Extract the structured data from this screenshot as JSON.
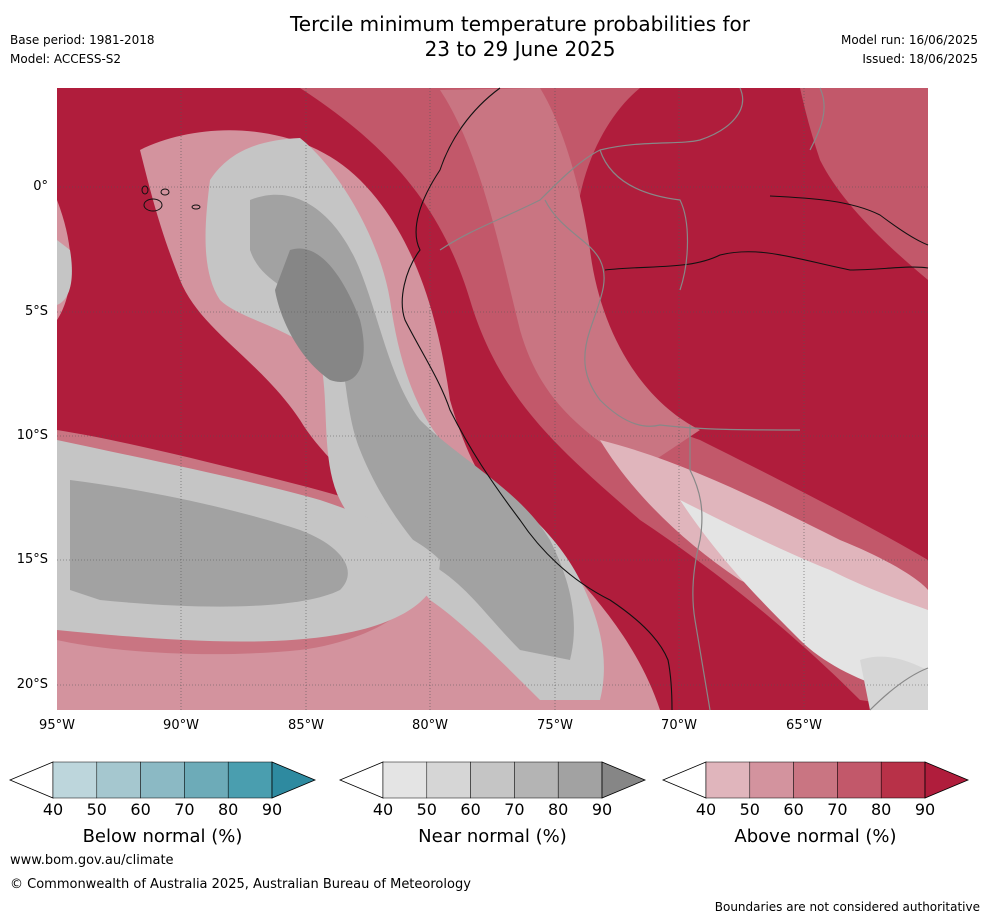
{
  "title_line1": "Tercile minimum temperature probabilities for",
  "title_line2": "23 to 29 June 2025",
  "base_period": "Base period: 1981-2018",
  "model": "Model: ACCESS-S2",
  "model_run": "Model run: 16/06/2025",
  "issued": "Issued: 18/06/2025",
  "lat_labels": [
    "0°",
    "5°S",
    "10°S",
    "15°S",
    "20°S"
  ],
  "lon_labels": [
    "95°W",
    "90°W",
    "85°W",
    "80°W",
    "75°W",
    "70°W",
    "65°W"
  ],
  "colorbars": [
    {
      "title": "Below normal (%)",
      "ticks": [
        "40",
        "50",
        "60",
        "70",
        "80",
        "90"
      ],
      "colors": [
        "#ffffff",
        "#bdd6dc",
        "#a5c7cf",
        "#8bb9c4",
        "#6dabb8",
        "#4a9eaf",
        "#2e8aa0"
      ]
    },
    {
      "title": "Near normal (%)",
      "ticks": [
        "40",
        "50",
        "60",
        "70",
        "80",
        "90"
      ],
      "colors": [
        "#ffffff",
        "#e4e4e4",
        "#d6d6d6",
        "#c5c5c5",
        "#b4b4b4",
        "#a2a2a2",
        "#868686"
      ]
    },
    {
      "title": "Above normal (%)",
      "ticks": [
        "40",
        "50",
        "60",
        "70",
        "80",
        "90"
      ],
      "colors": [
        "#ffffff",
        "#e0b5bc",
        "#d3939e",
        "#c97582",
        "#c2586a",
        "#b83148",
        "#b01d3c"
      ]
    }
  ],
  "website": "www.bom.gov.au/climate",
  "copyright": "© Commonwealth of Australia 2025, Australian Bureau of Meteorology",
  "disclaimer": "Boundaries are not considered authoritative"
}
